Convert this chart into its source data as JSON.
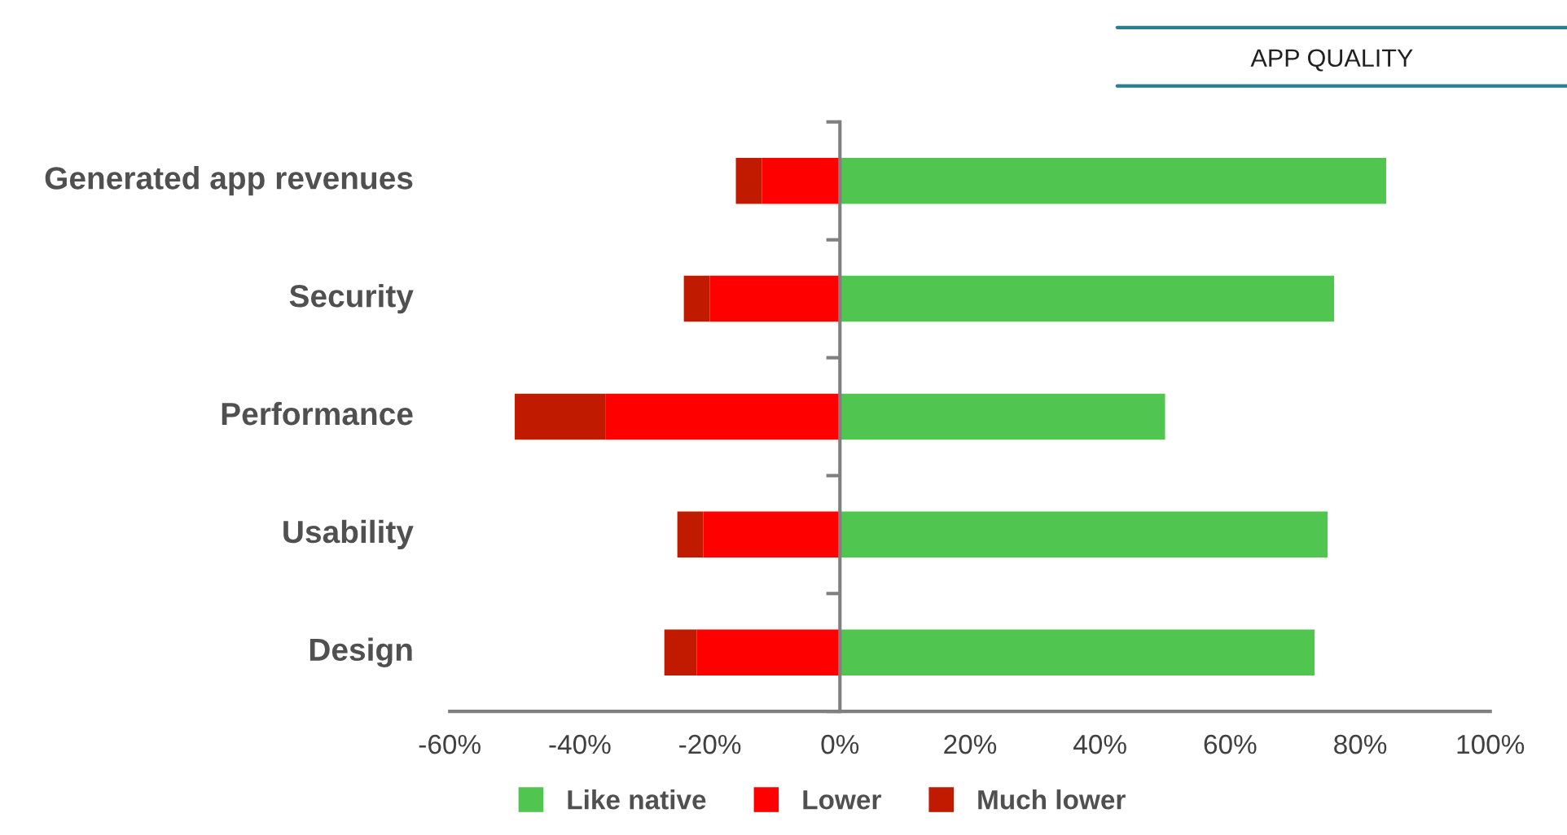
{
  "chart_data": {
    "type": "bar",
    "orientation": "horizontal",
    "stacked": true,
    "title": "APP QUALITY",
    "categories": [
      "Generated app revenues",
      "Security",
      "Performance",
      "Usability",
      "Design"
    ],
    "series": [
      {
        "name": "Like native",
        "color": "#50c650",
        "values": [
          84,
          76,
          50,
          75,
          73
        ]
      },
      {
        "name": "Lower",
        "color": "#ff0000",
        "values": [
          -12,
          -20,
          -36,
          -21,
          -22
        ]
      },
      {
        "name": "Much lower",
        "color": "#c01a00",
        "values": [
          -4,
          -4,
          -14,
          -4,
          -5
        ]
      }
    ],
    "xlim": [
      -60,
      100
    ],
    "xticks": [
      {
        "value": -60,
        "label": "-60%"
      },
      {
        "value": -40,
        "label": "-40%"
      },
      {
        "value": -20,
        "label": "-20%"
      },
      {
        "value": 0,
        "label": "0%"
      },
      {
        "value": 20,
        "label": "20%"
      },
      {
        "value": 40,
        "label": "40%"
      },
      {
        "value": 60,
        "label": "60%"
      },
      {
        "value": 80,
        "label": "80%"
      },
      {
        "value": 100,
        "label": "100%"
      }
    ],
    "legend": "bottom"
  }
}
